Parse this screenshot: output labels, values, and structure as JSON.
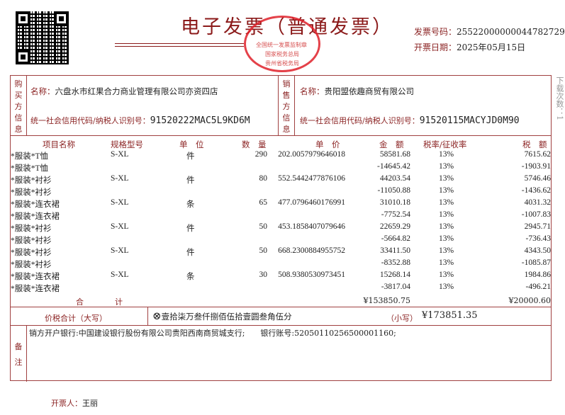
{
  "title": "电子发票（普通发票）",
  "stamp": {
    "top_text": "全国统一发票监制章",
    "middle_text": "国家税务总局",
    "bottom_text": "贵州省税务局",
    "color": "#e0202a"
  },
  "invoice_number_label": "发票号码：",
  "invoice_number": "25522000000044782729",
  "issue_date_label": "开票日期：",
  "issue_date": "2025年05月15日",
  "download_count": "下载次数：1",
  "buyer": {
    "section_label": "购买方信息",
    "name_label": "名称：",
    "name": "六盘水市红果合力商业管理有限公司亦资四店",
    "tax_id_label": "统一社会信用代码/纳税人识别号：",
    "tax_id": "91520222MAC5L9KD6M"
  },
  "seller": {
    "section_label": "销售方信息",
    "name_label": "名称：",
    "name": "贵阳盟依趣商贸有限公司",
    "tax_id_label": "统一社会信用代码/纳税人识别号：",
    "tax_id": "91520115MACYJD0M90"
  },
  "columns": {
    "name": "项目名称",
    "spec": "规格型号",
    "unit": "单　位",
    "qty": "数　量",
    "price": "单　价",
    "amount": "金　额",
    "rate": "税率/征收率",
    "tax": "税　额"
  },
  "items": [
    {
      "name": "*服装*T恤",
      "spec": "S-XL",
      "unit": "件",
      "qty": "290",
      "price": "202.0057979646018",
      "amount": "58581.68",
      "rate": "13%",
      "tax": "7615.62"
    },
    {
      "name": "*服装*T恤",
      "spec": "",
      "unit": "",
      "qty": "",
      "price": "",
      "amount": "-14645.42",
      "rate": "13%",
      "tax": "-1903.91"
    },
    {
      "name": "*服装*衬衫",
      "spec": "S-XL",
      "unit": "件",
      "qty": "80",
      "price": "552.5442477876106",
      "amount": "44203.54",
      "rate": "13%",
      "tax": "5746.46"
    },
    {
      "name": "*服装*衬衫",
      "spec": "",
      "unit": "",
      "qty": "",
      "price": "",
      "amount": "-11050.88",
      "rate": "13%",
      "tax": "-1436.62"
    },
    {
      "name": "*服装*连衣裙",
      "spec": "S-XL",
      "unit": "条",
      "qty": "65",
      "price": "477.0796460176991",
      "amount": "31010.18",
      "rate": "13%",
      "tax": "4031.32"
    },
    {
      "name": "*服装*连衣裙",
      "spec": "",
      "unit": "",
      "qty": "",
      "price": "",
      "amount": "-7752.54",
      "rate": "13%",
      "tax": "-1007.83"
    },
    {
      "name": "*服装*衬衫",
      "spec": "S-XL",
      "unit": "件",
      "qty": "50",
      "price": "453.1858407079646",
      "amount": "22659.29",
      "rate": "13%",
      "tax": "2945.71"
    },
    {
      "name": "*服装*衬衫",
      "spec": "",
      "unit": "",
      "qty": "",
      "price": "",
      "amount": "-5664.82",
      "rate": "13%",
      "tax": "-736.43"
    },
    {
      "name": "*服装*衬衫",
      "spec": "S-XL",
      "unit": "件",
      "qty": "50",
      "price": "668.2300884955752",
      "amount": "33411.50",
      "rate": "13%",
      "tax": "4343.50"
    },
    {
      "name": "*服装*衬衫",
      "spec": "",
      "unit": "",
      "qty": "",
      "price": "",
      "amount": "-8352.88",
      "rate": "13%",
      "tax": "-1085.87"
    },
    {
      "name": "*服装*连衣裙",
      "spec": "S-XL",
      "unit": "条",
      "qty": "30",
      "price": "508.9380530973451",
      "amount": "15268.14",
      "rate": "13%",
      "tax": "1984.86"
    },
    {
      "name": "*服装*连衣裙",
      "spec": "",
      "unit": "",
      "qty": "",
      "price": "",
      "amount": "-3817.04",
      "rate": "13%",
      "tax": "-496.21"
    }
  ],
  "totals": {
    "label": "合　　　　计",
    "amount": "¥153850.75",
    "tax": "¥20000.60"
  },
  "grand_total": {
    "label": "价税合计（大写）",
    "in_words": "壹拾柒万叁仟捌佰伍拾壹圆叁角伍分",
    "small_label": "（小写）",
    "in_figures": "¥173851.35"
  },
  "remarks": {
    "label": "备注",
    "text": "销方开户银行:中国建设银行股份有限公司贵阳西南商贸城支行;　　银行账号:52050110256500001160;"
  },
  "issuer_label": "开票人：",
  "issuer": "王丽"
}
